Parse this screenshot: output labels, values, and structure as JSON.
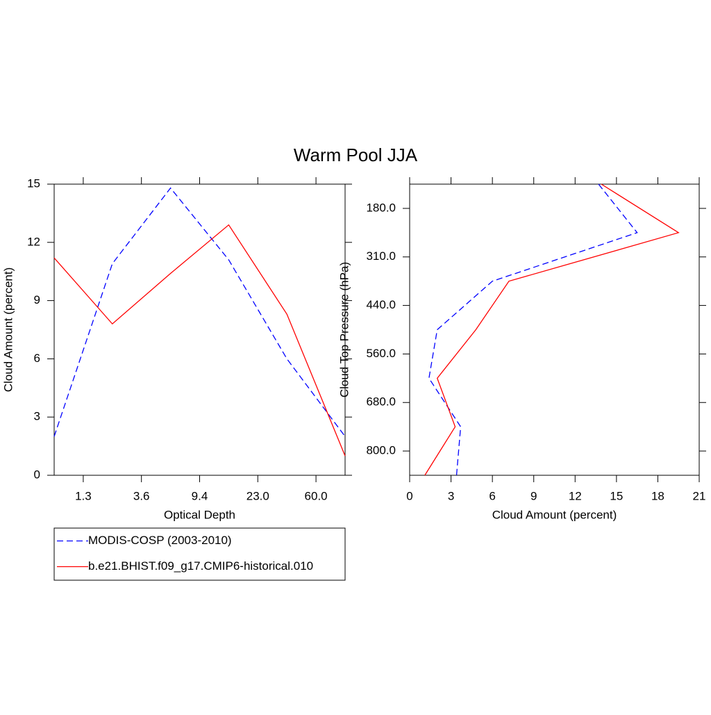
{
  "title": "Warm Pool JJA",
  "chart_data": [
    {
      "type": "line",
      "orientation": "vertical",
      "xlabel": "Optical Depth",
      "ylabel": "Cloud Amount (percent)",
      "x": [
        0,
        1,
        2,
        3,
        4,
        5
      ],
      "xlim": [
        0,
        5
      ],
      "xticks": [
        {
          "value": 0.5,
          "label": "1.3"
        },
        {
          "value": 1.5,
          "label": "3.6"
        },
        {
          "value": 2.5,
          "label": "9.4"
        },
        {
          "value": 3.5,
          "label": "23.0"
        },
        {
          "value": 4.5,
          "label": "60.0"
        }
      ],
      "ylim": [
        0,
        15
      ],
      "yticks": [
        0,
        3,
        6,
        9,
        12,
        15
      ],
      "legend": "bottom",
      "series": [
        {
          "name": "MODIS-COSP (2003-2010)",
          "color": "#0000ff",
          "linestyle": "dashed",
          "values": [
            2.0,
            10.9,
            14.8,
            11.1,
            6.0,
            2.0
          ]
        },
        {
          "name": "b.e21.BHIST.f09_g17.CMIP6-historical.010",
          "color": "#ff0000",
          "linestyle": "solid",
          "values": [
            11.2,
            7.8,
            10.4,
            12.9,
            8.3,
            1.0
          ]
        }
      ]
    },
    {
      "type": "line",
      "orientation": "horizontal",
      "xlabel": "Cloud Amount (percent)",
      "ylabel": "Cloud Top Pressure (hPa)",
      "y": [
        0,
        1,
        2,
        3,
        4,
        5,
        6
      ],
      "ylim": [
        6,
        0
      ],
      "yticks": [
        {
          "value": 0.5,
          "label": "180.0"
        },
        {
          "value": 1.5,
          "label": "310.0"
        },
        {
          "value": 2.5,
          "label": "440.0"
        },
        {
          "value": 3.5,
          "label": "560.0"
        },
        {
          "value": 4.5,
          "label": "680.0"
        },
        {
          "value": 5.5,
          "label": "800.0"
        }
      ],
      "xlim": [
        0,
        21
      ],
      "xticks": [
        0,
        3,
        6,
        9,
        12,
        15,
        18,
        21
      ],
      "series": [
        {
          "color": "#0000ff",
          "linestyle": "dashed",
          "values": [
            13.7,
            16.5,
            6.0,
            2.0,
            1.4,
            3.7,
            3.4
          ]
        },
        {
          "color": "#ff0000",
          "linestyle": "solid",
          "values": [
            13.9,
            19.5,
            7.2,
            4.8,
            2.0,
            3.3,
            1.1
          ]
        }
      ]
    }
  ]
}
